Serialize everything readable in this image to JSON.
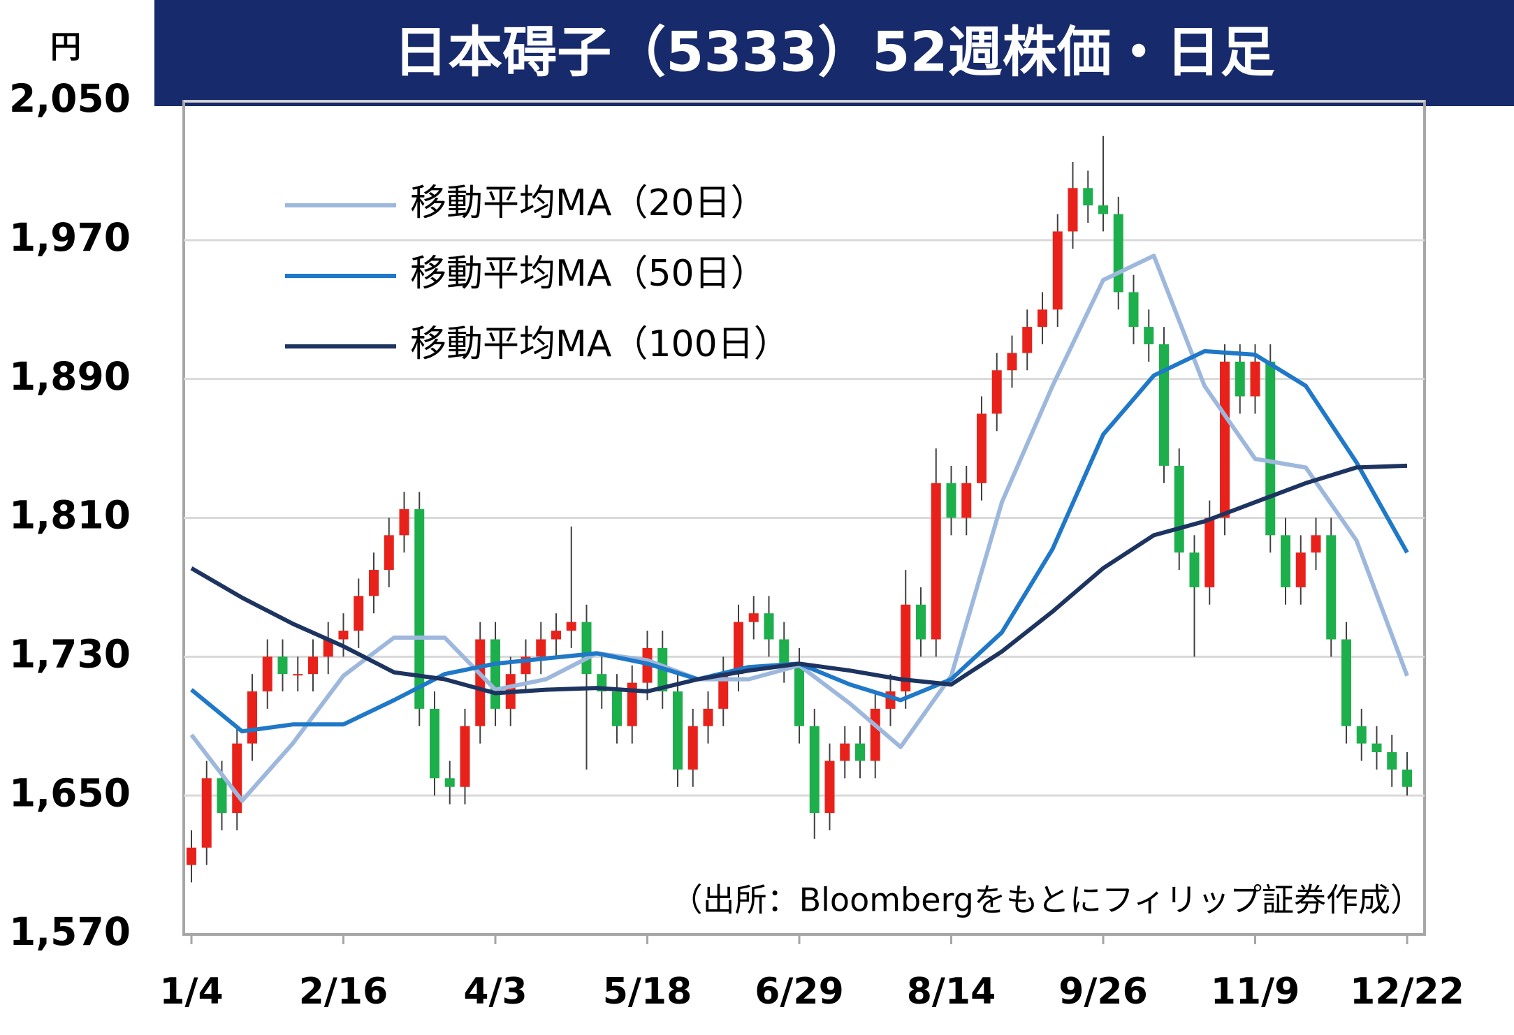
{
  "chart_data": {
    "type": "candlestick",
    "title": "日本碍子（5333）52週株価・日足",
    "unit": "円",
    "note": "（出所：Bloombergをもとにフィリップ証券作成）",
    "xlim": [
      0,
      240
    ],
    "xticks": [
      {
        "value": 0,
        "label": "1/4"
      },
      {
        "value": 30,
        "label": "2/16"
      },
      {
        "value": 60,
        "label": "4/3"
      },
      {
        "value": 90,
        "label": "5/18"
      },
      {
        "value": 120,
        "label": "6/29"
      },
      {
        "value": 150,
        "label": "8/14"
      },
      {
        "value": 180,
        "label": "9/26"
      },
      {
        "value": 210,
        "label": "11/9"
      },
      {
        "value": 240,
        "label": "12/22"
      }
    ],
    "ylim": [
      1570,
      2050
    ],
    "yticks": [
      {
        "value": 1570,
        "label": "1,570"
      },
      {
        "value": 1650,
        "label": "1,650"
      },
      {
        "value": 1730,
        "label": "1,730"
      },
      {
        "value": 1810,
        "label": "1,810"
      },
      {
        "value": 1890,
        "label": "1,890"
      },
      {
        "value": 1970,
        "label": "1,970"
      },
      {
        "value": 2050,
        "label": "2,050"
      }
    ],
    "grid": true,
    "up_color": "#e8221b",
    "down_color": "#1daf4c",
    "candles": {
      "x": [
        0,
        3,
        6,
        9,
        12,
        15,
        18,
        21,
        24,
        27,
        30,
        33,
        36,
        39,
        42,
        45,
        48,
        51,
        54,
        57,
        60,
        63,
        66,
        69,
        72,
        75,
        78,
        81,
        84,
        87,
        90,
        93,
        96,
        99,
        102,
        105,
        108,
        111,
        114,
        117,
        120,
        123,
        126,
        129,
        132,
        135,
        138,
        141,
        144,
        147,
        150,
        153,
        156,
        159,
        162,
        165,
        168,
        171,
        174,
        177,
        180,
        183,
        186,
        189,
        192,
        195,
        198,
        201,
        204,
        207,
        210,
        213,
        216,
        219,
        222,
        225,
        228,
        231,
        234,
        237,
        240
      ],
      "open": [
        1610,
        1620,
        1660,
        1640,
        1680,
        1710,
        1730,
        1720,
        1720,
        1730,
        1740,
        1745,
        1765,
        1780,
        1800,
        1815,
        1700,
        1660,
        1655,
        1690,
        1740,
        1700,
        1720,
        1730,
        1740,
        1745,
        1750,
        1720,
        1710,
        1690,
        1715,
        1735,
        1710,
        1665,
        1690,
        1700,
        1720,
        1750,
        1755,
        1740,
        1725,
        1690,
        1640,
        1670,
        1680,
        1670,
        1700,
        1710,
        1760,
        1740,
        1830,
        1810,
        1830,
        1870,
        1895,
        1905,
        1920,
        1930,
        1975,
        2000,
        1990,
        1985,
        1940,
        1920,
        1910,
        1840,
        1790,
        1770,
        1810,
        1900,
        1880,
        1900,
        1800,
        1770,
        1790,
        1800,
        1740,
        1690,
        1680,
        1675,
        1665
      ],
      "high": [
        1630,
        1670,
        1670,
        1690,
        1720,
        1740,
        1740,
        1730,
        1740,
        1750,
        1755,
        1775,
        1790,
        1810,
        1825,
        1825,
        1710,
        1670,
        1700,
        1750,
        1750,
        1730,
        1740,
        1750,
        1755,
        1805,
        1760,
        1730,
        1720,
        1725,
        1745,
        1745,
        1720,
        1700,
        1710,
        1730,
        1760,
        1765,
        1765,
        1750,
        1735,
        1700,
        1680,
        1690,
        1690,
        1710,
        1720,
        1780,
        1770,
        1850,
        1840,
        1840,
        1880,
        1905,
        1915,
        1930,
        1940,
        1985,
        2015,
        2010,
        2030,
        1995,
        1950,
        1930,
        1920,
        1850,
        1800,
        1820,
        1910,
        1910,
        1910,
        1910,
        1810,
        1800,
        1810,
        1810,
        1750,
        1700,
        1690,
        1685,
        1675
      ],
      "low": [
        1600,
        1610,
        1630,
        1630,
        1670,
        1700,
        1710,
        1710,
        1710,
        1720,
        1730,
        1735,
        1755,
        1770,
        1790,
        1690,
        1650,
        1645,
        1645,
        1680,
        1690,
        1690,
        1710,
        1720,
        1730,
        1735,
        1665,
        1700,
        1680,
        1680,
        1705,
        1700,
        1655,
        1655,
        1680,
        1690,
        1710,
        1740,
        1730,
        1715,
        1680,
        1625,
        1630,
        1660,
        1660,
        1660,
        1690,
        1700,
        1730,
        1730,
        1800,
        1800,
        1820,
        1860,
        1885,
        1895,
        1910,
        1920,
        1965,
        1980,
        1975,
        1930,
        1910,
        1900,
        1830,
        1780,
        1730,
        1760,
        1800,
        1870,
        1870,
        1790,
        1760,
        1760,
        1780,
        1730,
        1680,
        1670,
        1665,
        1655,
        1650
      ],
      "close": [
        1620,
        1660,
        1640,
        1680,
        1710,
        1730,
        1720,
        1720,
        1730,
        1740,
        1745,
        1765,
        1780,
        1800,
        1815,
        1700,
        1660,
        1655,
        1690,
        1740,
        1700,
        1720,
        1730,
        1740,
        1745,
        1750,
        1720,
        1710,
        1690,
        1715,
        1735,
        1710,
        1665,
        1690,
        1700,
        1720,
        1750,
        1755,
        1740,
        1725,
        1690,
        1640,
        1670,
        1680,
        1670,
        1700,
        1710,
        1760,
        1740,
        1830,
        1810,
        1830,
        1870,
        1895,
        1905,
        1920,
        1930,
        1975,
        2000,
        1990,
        1985,
        1940,
        1920,
        1910,
        1840,
        1790,
        1770,
        1810,
        1900,
        1880,
        1900,
        1800,
        1770,
        1790,
        1800,
        1740,
        1690,
        1680,
        1675,
        1665,
        1655
      ]
    },
    "series": [
      {
        "name": "移動平均MA（20日）",
        "color": "#9db8dc",
        "x": [
          0,
          10,
          20,
          30,
          40,
          50,
          60,
          70,
          80,
          90,
          100,
          110,
          120,
          130,
          140,
          150,
          160,
          170,
          180,
          190,
          200,
          210,
          220,
          230,
          240
        ],
        "values": [
          1685,
          1647,
          1680,
          1719,
          1741,
          1741,
          1711,
          1717,
          1732,
          1728,
          1717,
          1717,
          1725,
          1703,
          1678,
          1719,
          1819,
          1886,
          1947,
          1961,
          1886,
          1844,
          1839,
          1797,
          1719
        ]
      },
      {
        "name": "移動平均MA（50日）",
        "color": "#1f78c8",
        "x": [
          0,
          10,
          20,
          30,
          40,
          50,
          60,
          70,
          80,
          90,
          100,
          110,
          120,
          130,
          140,
          150,
          160,
          170,
          180,
          190,
          200,
          210,
          220,
          230,
          240
        ],
        "values": [
          1711,
          1687,
          1691,
          1691,
          1705,
          1720,
          1726,
          1729,
          1732,
          1726,
          1717,
          1724,
          1726,
          1714,
          1705,
          1717,
          1744,
          1792,
          1858,
          1892,
          1906,
          1904,
          1886,
          1842,
          1790
        ]
      },
      {
        "name": "移動平均MA（100日）",
        "color": "#1d3461",
        "x": [
          0,
          10,
          20,
          30,
          40,
          50,
          60,
          70,
          80,
          90,
          100,
          110,
          120,
          130,
          140,
          150,
          160,
          170,
          180,
          190,
          200,
          210,
          220,
          230,
          240
        ],
        "values": [
          1781,
          1764,
          1749,
          1736,
          1721,
          1717,
          1709,
          1711,
          1712,
          1710,
          1717,
          1722,
          1726,
          1722,
          1717,
          1714,
          1733,
          1756,
          1781,
          1800,
          1808,
          1819,
          1830,
          1839,
          1840
        ]
      }
    ]
  }
}
